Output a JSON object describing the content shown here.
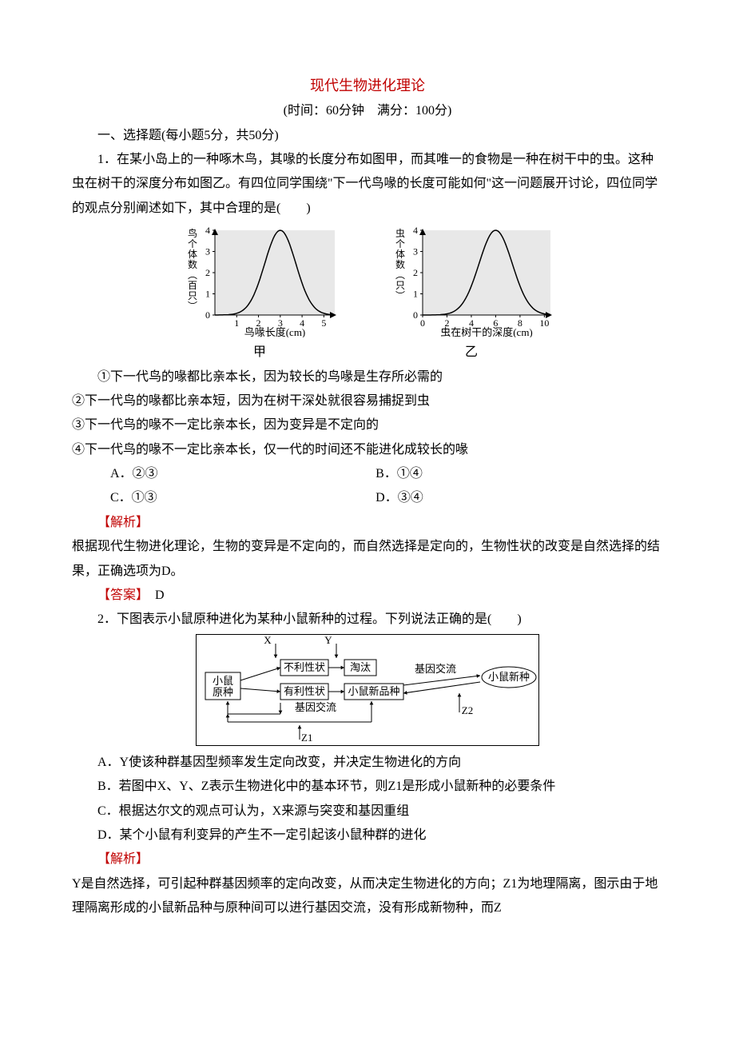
{
  "title": "现代生物进化理论",
  "subtitle": "(时间：60分钟　满分：100分)",
  "section_heading": "一、选择题(每小题5分，共50分)",
  "q1": {
    "stem1": "1．在某小岛上的一种啄木鸟，其喙的长度分布如图甲，而其唯一的食物是一种在树干中的虫。这种虫在树干的深度分布如图乙。有四位同学围绕\"下一代鸟喙的长度可能如何\"这一问题展开讨论，四位同学的观点分别阐述如下，其中合理的是(　　)",
    "statements": [
      "①下一代鸟的喙都比亲本长，因为较长的鸟喙是生存所必需的",
      "②下一代鸟的喙都比亲本短，因为在树干深处就很容易捕捉到虫",
      "③下一代鸟的喙不一定比亲本长，因为变异是不定向的",
      "④下一代鸟的喙不一定比亲本长，仅一代的时间还不能进化成较长的喙"
    ],
    "options": {
      "A": "A．②③",
      "B": "B．①④",
      "C": "C．①③",
      "D": "D．③④"
    },
    "jiexi_label": "【解析】",
    "jiexi": "根据现代生物进化理论，生物的变异是不定向的，而自然选择是定向的，生物性状的改变是自然选择的结果，正确选项为D。",
    "answer_label": "【答案】",
    "answer": "D"
  },
  "q2": {
    "stem": "2．下图表示小鼠原种进化为某种小鼠新种的过程。下列说法正确的是(　　)",
    "choices": [
      "A．Y使该种群基因型频率发生定向改变，并决定生物进化的方向",
      "B．若图中X、Y、Z表示生物进化中的基本环节，则Z1是形成小鼠新种的必要条件",
      "C．根据达尔文的观点可认为，X来源与突变和基因重组",
      "D．某个小鼠有利变异的产生不一定引起该小鼠种群的进化"
    ],
    "jiexi_label": "【解析】",
    "jiexi": "Y是自然选择，可引起种群基因频率的定向改变，从而决定生物进化的方向；Z1为地理隔离，图示由于地理隔离形成的小鼠新品种与原种间可以进行基因交流，没有形成新物种，而Z"
  },
  "chart_a": {
    "y_label_chars": [
      "鸟",
      "个",
      "体",
      "数",
      "︵",
      "百",
      "只",
      "︶"
    ],
    "x_label": "鸟喙长度(cm)",
    "x_ticks": [
      "1",
      "2",
      "3",
      "4",
      "5"
    ],
    "y_ticks": [
      "0",
      "1",
      "2",
      "3",
      "4"
    ],
    "peak_x": 3,
    "peak_y": 4,
    "caption": "甲",
    "bg": "#e8e8e8",
    "curve": "#000000",
    "axis": "#000000"
  },
  "chart_b": {
    "y_label_chars": [
      "虫",
      "个",
      "体",
      "数",
      "︵",
      "只",
      "︶"
    ],
    "x_label": "虫在树干的深度(cm)",
    "x_ticks": [
      "0",
      "2",
      "4",
      "6",
      "8",
      "10"
    ],
    "y_ticks": [
      "0",
      "1",
      "2",
      "3",
      "4"
    ],
    "peak_x": 6,
    "peak_y": 4,
    "caption": "乙",
    "bg": "#e8e8e8",
    "curve": "#000000",
    "axis": "#000000"
  },
  "diagram": {
    "bg": "#ffffff",
    "border": "#000000",
    "text": "#000000",
    "nodes": {
      "origin": "小鼠\n原种",
      "bad": "不利性状",
      "good": "有利性状",
      "elim": "淘汰",
      "new_breed": "小鼠新品种",
      "new_species": "小鼠新种"
    },
    "labels": {
      "X": "X",
      "Y": "Y",
      "Z1": "Z1",
      "Z2": "Z2",
      "exchange_lower": "基因交流",
      "exchange_right": "基因交流"
    }
  }
}
